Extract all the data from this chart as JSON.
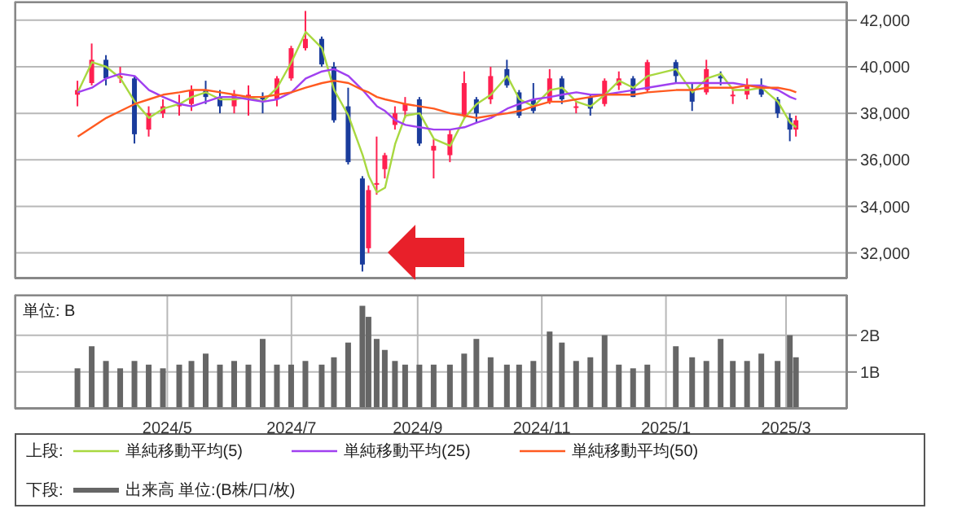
{
  "chart_data": [
    {
      "type": "candlestick",
      "legend_title": "上段:",
      "legend": "bottom",
      "grid": true,
      "tick_labels": "y",
      "x": [
        "2024-03-18",
        "2024-03-25",
        "2024-04-01",
        "2024-04-08",
        "2024-04-15",
        "2024-04-22",
        "2024-04-29",
        "2024-05-07",
        "2024-05-13",
        "2024-05-20",
        "2024-05-27",
        "2024-06-03",
        "2024-06-10",
        "2024-06-17",
        "2024-06-24",
        "2024-07-01",
        "2024-07-08",
        "2024-07-16",
        "2024-07-22",
        "2024-07-29",
        "2024-08-05",
        "2024-08-08",
        "2024-08-12",
        "2024-08-16",
        "2024-08-21",
        "2024-08-26",
        "2024-09-02",
        "2024-09-09",
        "2024-09-17",
        "2024-09-24",
        "2024-09-30",
        "2024-10-07",
        "2024-10-15",
        "2024-10-21",
        "2024-10-28",
        "2024-11-05",
        "2024-11-11",
        "2024-11-18",
        "2024-11-25",
        "2024-12-02",
        "2024-12-09",
        "2024-12-16",
        "2024-12-23",
        "2025-01-06",
        "2025-01-14",
        "2025-01-21",
        "2025-01-28",
        "2025-02-03",
        "2025-02-10",
        "2025-02-17",
        "2025-02-25",
        "2025-03-03",
        "2025-03-06"
      ],
      "xlim": [
        "2024-02-16",
        "2025-03-31"
      ],
      "xticks": [
        {
          "value": "2024-05-01",
          "label": null
        },
        {
          "value": "2024-07-01",
          "label": null
        },
        {
          "value": "2024-09-01",
          "label": null
        },
        {
          "value": "2024-11-01",
          "label": null
        },
        {
          "value": "2025-01-01",
          "label": null
        },
        {
          "value": "2025-03-01",
          "label": null
        }
      ],
      "ylim": [
        30900,
        42800
      ],
      "yticks": [
        {
          "value": 32000,
          "label": "32,000"
        },
        {
          "value": 34000,
          "label": "34,000"
        },
        {
          "value": 36000,
          "label": "36,000"
        },
        {
          "value": 38000,
          "label": "38,000"
        },
        {
          "value": 40000,
          "label": "40,000"
        },
        {
          "value": 42000,
          "label": "42,000"
        }
      ],
      "series": [
        {
          "type": "line",
          "name": "単純移動平均(5)",
          "color": "#a8d840",
          "values": [
            38900,
            40200,
            40000,
            39500,
            38500,
            37800,
            38200,
            38400,
            38700,
            38900,
            38600,
            38600,
            38700,
            38500,
            39100,
            40200,
            41500,
            40800,
            39000,
            37900,
            36200,
            35300,
            34600,
            34800,
            36700,
            37900,
            38000,
            36900,
            36600,
            37800,
            38400,
            38800,
            39600,
            38600,
            38300,
            39000,
            39100,
            38500,
            38300,
            38800,
            39400,
            39100,
            39600,
            39900,
            38900,
            39500,
            39700,
            39000,
            39000,
            39100,
            38500,
            37600,
            37400
          ]
        },
        {
          "type": "line",
          "name": "単純移動平均(25)",
          "color": "#a040f0",
          "values": [
            38900,
            39100,
            39500,
            39700,
            39600,
            39000,
            38700,
            38400,
            38300,
            38500,
            38700,
            38700,
            38600,
            38500,
            38600,
            38900,
            39500,
            39800,
            39900,
            39600,
            39000,
            38700,
            38300,
            38100,
            37700,
            37500,
            37400,
            37300,
            37300,
            37400,
            37600,
            37800,
            38200,
            38400,
            38600,
            38700,
            38800,
            38900,
            38800,
            38800,
            38900,
            39000,
            39100,
            39300,
            39300,
            39300,
            39300,
            39300,
            39200,
            39200,
            39000,
            38700,
            38600
          ]
        },
        {
          "type": "line",
          "name": "単純移動平均(50)",
          "color": "#ff5a20",
          "values": [
            37000,
            37400,
            37800,
            38100,
            38400,
            38600,
            38800,
            38900,
            39000,
            39000,
            38900,
            38800,
            38700,
            38700,
            38800,
            38900,
            39100,
            39300,
            39400,
            39300,
            39000,
            38900,
            38700,
            38600,
            38500,
            38400,
            38300,
            38200,
            38000,
            37900,
            37800,
            37900,
            38000,
            38100,
            38300,
            38500,
            38500,
            38600,
            38700,
            38800,
            38800,
            38800,
            38900,
            39000,
            39000,
            39100,
            39100,
            39100,
            39200,
            39100,
            39100,
            39000,
            38900
          ]
        },
        {
          "ohlc": [
            [
              38800,
              39400,
              38300,
              39000
            ],
            [
              39300,
              41000,
              39200,
              40300
            ],
            [
              40300,
              40500,
              39200,
              39500
            ],
            [
              39500,
              40000,
              39300,
              39600
            ],
            [
              39500,
              39600,
              36700,
              37100
            ],
            [
              37300,
              38300,
              37000,
              38000
            ],
            [
              38000,
              38600,
              37800,
              38300
            ],
            [
              38300,
              38800,
              37900,
              38400
            ],
            [
              38400,
              39200,
              38100,
              39000
            ],
            [
              39000,
              39400,
              38400,
              38700
            ],
            [
              38700,
              39000,
              38000,
              38300
            ],
            [
              38300,
              39000,
              38000,
              38800
            ],
            [
              38800,
              39200,
              37900,
              38800
            ],
            [
              38700,
              38900,
              38000,
              38600
            ],
            [
              38600,
              39600,
              38300,
              39500
            ],
            [
              39500,
              40900,
              39400,
              40800
            ],
            [
              40800,
              42400,
              40700,
              41200
            ],
            [
              41200,
              41300,
              40000,
              40100
            ],
            [
              40000,
              40200,
              37600,
              37700
            ],
            [
              38300,
              39100,
              35800,
              35900
            ],
            [
              35200,
              35300,
              31200,
              31500
            ],
            [
              32200,
              34900,
              32000,
              34700
            ],
            [
              35000,
              37000,
              34500,
              35000
            ],
            [
              35600,
              36300,
              35200,
              36200
            ],
            [
              37500,
              38300,
              37300,
              38000
            ],
            [
              38100,
              38700,
              37800,
              38400
            ],
            [
              38600,
              38700,
              36600,
              36700
            ],
            [
              36400,
              36900,
              35200,
              36600
            ],
            [
              36200,
              37300,
              35900,
              37100
            ],
            [
              37900,
              39800,
              37800,
              39300
            ],
            [
              38600,
              38700,
              37600,
              38000
            ],
            [
              38600,
              40000,
              38400,
              39600
            ],
            [
              39900,
              40300,
              39100,
              39200
            ],
            [
              38900,
              39000,
              37800,
              37900
            ],
            [
              38600,
              39300,
              38000,
              38100
            ],
            [
              38500,
              39900,
              38400,
              39500
            ],
            [
              39500,
              39600,
              38400,
              38600
            ],
            [
              38300,
              38500,
              38000,
              38300
            ],
            [
              38700,
              38800,
              37900,
              38200
            ],
            [
              38400,
              39500,
              38300,
              39400
            ],
            [
              39200,
              39800,
              39000,
              39500
            ],
            [
              39500,
              39600,
              38700,
              38700
            ],
            [
              39000,
              40300,
              38900,
              40200
            ],
            [
              40200,
              40300,
              39300,
              39600
            ],
            [
              39000,
              39300,
              38100,
              38500
            ],
            [
              38900,
              40300,
              38800,
              39900
            ],
            [
              39600,
              39800,
              39200,
              39500
            ],
            [
              38800,
              39000,
              38400,
              38800
            ],
            [
              38800,
              39500,
              38600,
              39200
            ],
            [
              39200,
              39500,
              38700,
              38800
            ],
            [
              38600,
              38700,
              37800,
              38000
            ],
            [
              37800,
              38000,
              36800,
              37300
            ],
            [
              37300,
              37900,
              37000,
              37700
            ]
          ],
          "colors": [
            "#ff2050",
            "#ff2050",
            "#1a3c9c",
            "#ff2050",
            "#1a3c9c",
            "#ff2050",
            "#ff2050",
            "#ff2050",
            "#ff2050",
            "#1a3c9c",
            "#1a3c9c",
            "#ff2050",
            "#ff2050",
            "#1a3c9c",
            "#ff2050",
            "#ff2050",
            "#ff2050",
            "#1a3c9c",
            "#1a3c9c",
            "#1a3c9c",
            "#1a3c9c",
            "#ff2050",
            "#ff2050",
            "#ff2050",
            "#ff2050",
            "#ff2050",
            "#1a3c9c",
            "#ff2050",
            "#ff2050",
            "#ff2050",
            "#1a3c9c",
            "#ff2050",
            "#1a3c9c",
            "#1a3c9c",
            "#1a3c9c",
            "#ff2050",
            "#1a3c9c",
            "#ff2050",
            "#1a3c9c",
            "#ff2050",
            "#ff2050",
            "#1a3c9c",
            "#ff2050",
            "#1a3c9c",
            "#1a3c9c",
            "#ff2050",
            "#1a3c9c",
            "#ff2050",
            "#ff2050",
            "#1a3c9c",
            "#1a3c9c",
            "#1a3c9c",
            "#ff2050"
          ]
        }
      ]
    },
    {
      "type": "bar",
      "ylabel": "単位: B",
      "legend_title": "下段:",
      "legend": "bottom",
      "grid": true,
      "x": [
        "2024-03-18",
        "2024-03-25",
        "2024-04-01",
        "2024-04-08",
        "2024-04-15",
        "2024-04-22",
        "2024-04-29",
        "2024-05-07",
        "2024-05-13",
        "2024-05-20",
        "2024-05-27",
        "2024-06-03",
        "2024-06-10",
        "2024-06-17",
        "2024-06-24",
        "2024-07-01",
        "2024-07-08",
        "2024-07-16",
        "2024-07-22",
        "2024-07-29",
        "2024-08-05",
        "2024-08-08",
        "2024-08-12",
        "2024-08-16",
        "2024-08-21",
        "2024-08-26",
        "2024-09-02",
        "2024-09-09",
        "2024-09-17",
        "2024-09-24",
        "2024-09-30",
        "2024-10-07",
        "2024-10-15",
        "2024-10-21",
        "2024-10-28",
        "2024-11-05",
        "2024-11-11",
        "2024-11-18",
        "2024-11-25",
        "2024-12-02",
        "2024-12-09",
        "2024-12-16",
        "2024-12-23",
        "2025-01-06",
        "2025-01-14",
        "2025-01-21",
        "2025-01-28",
        "2025-02-03",
        "2025-02-10",
        "2025-02-17",
        "2025-02-25",
        "2025-03-03",
        "2025-03-06"
      ],
      "xlim": [
        "2024-02-16",
        "2025-03-31"
      ],
      "xticks": [
        {
          "value": "2024-05-01",
          "label": "2024/5"
        },
        {
          "value": "2024-07-01",
          "label": "2024/7"
        },
        {
          "value": "2024-09-01",
          "label": "2024/9"
        },
        {
          "value": "2024-11-01",
          "label": "2024/11"
        },
        {
          "value": "2025-01-01",
          "label": "2025/1"
        },
        {
          "value": "2025-03-01",
          "label": "2025/3"
        }
      ],
      "ylim": [
        0,
        3.1
      ],
      "yticks": [
        {
          "value": 1,
          "label": "1B"
        },
        {
          "value": 2,
          "label": "2B"
        }
      ],
      "series": [
        {
          "name": "出来高 単位:(B株/口/枚)",
          "color": "#666666",
          "values": [
            1.1,
            1.7,
            1.3,
            1.1,
            1.3,
            1.2,
            1.1,
            1.2,
            1.3,
            1.5,
            1.2,
            1.3,
            1.2,
            1.9,
            1.2,
            1.2,
            1.3,
            1.2,
            1.4,
            1.8,
            2.8,
            2.5,
            1.9,
            1.6,
            1.3,
            1.2,
            1.2,
            1.2,
            1.2,
            1.5,
            1.9,
            1.4,
            1.2,
            1.2,
            1.3,
            2.1,
            1.8,
            1.3,
            1.4,
            2.0,
            1.2,
            1.1,
            1.2,
            1.7,
            1.4,
            1.3,
            1.9,
            1.3,
            1.3,
            1.5,
            1.3,
            2.0,
            1.4
          ]
        }
      ]
    }
  ]
}
